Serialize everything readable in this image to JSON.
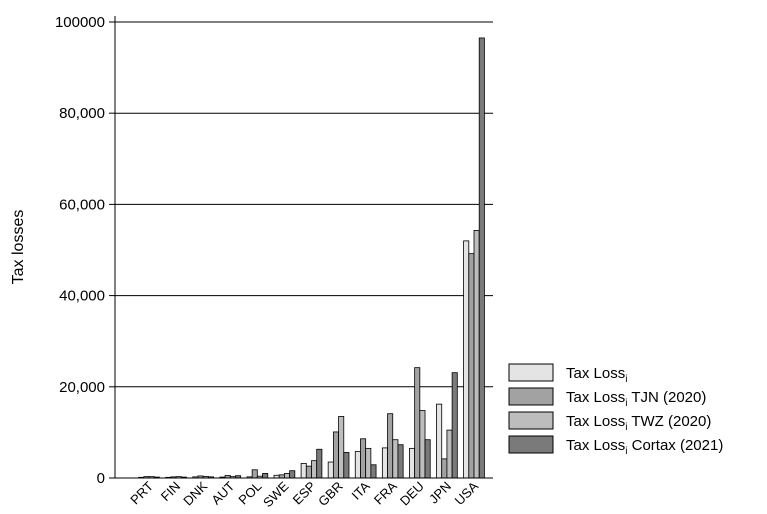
{
  "chart_data": {
    "type": "bar",
    "title": "",
    "xlabel": "",
    "ylabel": "Tax losses",
    "ylim": [
      0,
      100000
    ],
    "yticks": [
      {
        "value": 0,
        "label": "0"
      },
      {
        "value": 20000,
        "label": "20,000"
      },
      {
        "value": 40000,
        "label": "40,000"
      },
      {
        "value": 60000,
        "label": "60,000"
      },
      {
        "value": 80000,
        "label": "80,000"
      },
      {
        "value": 100000,
        "label": "100000"
      }
    ],
    "grid": "horizontal",
    "legend_position": "bottom-right",
    "categories": [
      "PRT",
      "FIN",
      "DNK",
      "AUT",
      "POL",
      "SWE",
      "ESP",
      "GBR",
      "ITA",
      "FRA",
      "DEU",
      "JPN",
      "USA"
    ],
    "series": [
      {
        "name": "Tax Loss",
        "subscript": "i",
        "suffix": "",
        "color": "#e4e4e4",
        "values": [
          150,
          150,
          250,
          200,
          250,
          600,
          3200,
          3500,
          5800,
          6600,
          6500,
          16200,
          52000
        ]
      },
      {
        "name": "Tax Loss",
        "subscript": "i",
        "suffix": " TJN (2020)",
        "color": "#a2a2a2",
        "values": [
          300,
          250,
          450,
          550,
          1800,
          700,
          2600,
          10100,
          8600,
          14100,
          24200,
          4200,
          49200
        ]
      },
      {
        "name": "Tax Loss",
        "subscript": "i",
        "suffix": " TWZ (2020)",
        "color": "#bdbdbd",
        "values": [
          300,
          300,
          350,
          300,
          400,
          1000,
          3800,
          13500,
          6500,
          8400,
          14800,
          10500,
          54300
        ]
      },
      {
        "name": "Tax Loss",
        "subscript": "i",
        "suffix": " Cortax (2021)",
        "color": "#7a7a7a",
        "values": [
          200,
          200,
          250,
          500,
          1000,
          1600,
          6300,
          5600,
          2900,
          7300,
          8400,
          23100,
          96500
        ]
      }
    ]
  }
}
